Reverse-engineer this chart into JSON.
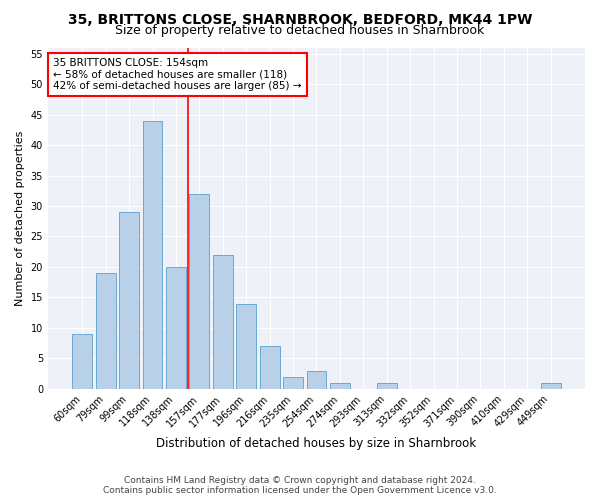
{
  "title1": "35, BRITTONS CLOSE, SHARNBROOK, BEDFORD, MK44 1PW",
  "title2": "Size of property relative to detached houses in Sharnbrook",
  "xlabel": "Distribution of detached houses by size in Sharnbrook",
  "ylabel": "Number of detached properties",
  "categories": [
    "60sqm",
    "79sqm",
    "99sqm",
    "118sqm",
    "138sqm",
    "157sqm",
    "177sqm",
    "196sqm",
    "216sqm",
    "235sqm",
    "254sqm",
    "274sqm",
    "293sqm",
    "313sqm",
    "332sqm",
    "352sqm",
    "371sqm",
    "390sqm",
    "410sqm",
    "429sqm",
    "449sqm"
  ],
  "values": [
    9,
    19,
    29,
    44,
    20,
    32,
    22,
    14,
    7,
    2,
    3,
    1,
    0,
    1,
    0,
    0,
    0,
    0,
    0,
    0,
    1
  ],
  "bar_color": "#b8d0e8",
  "bar_edge_color": "#6aaad4",
  "vline_index": 5,
  "vline_color": "red",
  "annotation_text": "35 BRITTONS CLOSE: 154sqm\n← 58% of detached houses are smaller (118)\n42% of semi-detached houses are larger (85) →",
  "annotation_box_color": "white",
  "annotation_box_edge_color": "red",
  "ylim": [
    0,
    56
  ],
  "yticks": [
    0,
    5,
    10,
    15,
    20,
    25,
    30,
    35,
    40,
    45,
    50,
    55
  ],
  "footer1": "Contains HM Land Registry data © Crown copyright and database right 2024.",
  "footer2": "Contains public sector information licensed under the Open Government Licence v3.0.",
  "bg_color": "#ffffff",
  "plot_bg_color": "#eef2f8",
  "title1_fontsize": 10,
  "title2_fontsize": 9,
  "xlabel_fontsize": 8.5,
  "ylabel_fontsize": 8,
  "tick_fontsize": 7,
  "footer_fontsize": 6.5,
  "annotation_fontsize": 7.5
}
